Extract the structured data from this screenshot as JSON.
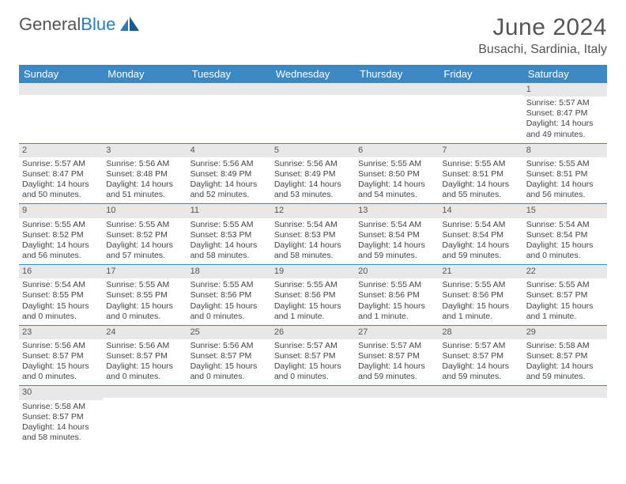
{
  "brand": {
    "part1": "General",
    "part2": "Blue"
  },
  "title": "June 2024",
  "location": "Busachi, Sardinia, Italy",
  "colors": {
    "header_bg": "#3b88c4",
    "header_text": "#ffffff",
    "daynum_bg": "#e8e8e8",
    "text": "#555555",
    "row_divider": "#3b88c4"
  },
  "days_of_week": [
    "Sunday",
    "Monday",
    "Tuesday",
    "Wednesday",
    "Thursday",
    "Friday",
    "Saturday"
  ],
  "first_weekday_index": 6,
  "days": [
    {
      "n": 1,
      "sunrise": "5:57 AM",
      "sunset": "8:47 PM",
      "daylight": "14 hours and 49 minutes."
    },
    {
      "n": 2,
      "sunrise": "5:57 AM",
      "sunset": "8:47 PM",
      "daylight": "14 hours and 50 minutes."
    },
    {
      "n": 3,
      "sunrise": "5:56 AM",
      "sunset": "8:48 PM",
      "daylight": "14 hours and 51 minutes."
    },
    {
      "n": 4,
      "sunrise": "5:56 AM",
      "sunset": "8:49 PM",
      "daylight": "14 hours and 52 minutes."
    },
    {
      "n": 5,
      "sunrise": "5:56 AM",
      "sunset": "8:49 PM",
      "daylight": "14 hours and 53 minutes."
    },
    {
      "n": 6,
      "sunrise": "5:55 AM",
      "sunset": "8:50 PM",
      "daylight": "14 hours and 54 minutes."
    },
    {
      "n": 7,
      "sunrise": "5:55 AM",
      "sunset": "8:51 PM",
      "daylight": "14 hours and 55 minutes."
    },
    {
      "n": 8,
      "sunrise": "5:55 AM",
      "sunset": "8:51 PM",
      "daylight": "14 hours and 56 minutes."
    },
    {
      "n": 9,
      "sunrise": "5:55 AM",
      "sunset": "8:52 PM",
      "daylight": "14 hours and 56 minutes."
    },
    {
      "n": 10,
      "sunrise": "5:55 AM",
      "sunset": "8:52 PM",
      "daylight": "14 hours and 57 minutes."
    },
    {
      "n": 11,
      "sunrise": "5:55 AM",
      "sunset": "8:53 PM",
      "daylight": "14 hours and 58 minutes."
    },
    {
      "n": 12,
      "sunrise": "5:54 AM",
      "sunset": "8:53 PM",
      "daylight": "14 hours and 58 minutes."
    },
    {
      "n": 13,
      "sunrise": "5:54 AM",
      "sunset": "8:54 PM",
      "daylight": "14 hours and 59 minutes."
    },
    {
      "n": 14,
      "sunrise": "5:54 AM",
      "sunset": "8:54 PM",
      "daylight": "14 hours and 59 minutes."
    },
    {
      "n": 15,
      "sunrise": "5:54 AM",
      "sunset": "8:54 PM",
      "daylight": "15 hours and 0 minutes."
    },
    {
      "n": 16,
      "sunrise": "5:54 AM",
      "sunset": "8:55 PM",
      "daylight": "15 hours and 0 minutes."
    },
    {
      "n": 17,
      "sunrise": "5:55 AM",
      "sunset": "8:55 PM",
      "daylight": "15 hours and 0 minutes."
    },
    {
      "n": 18,
      "sunrise": "5:55 AM",
      "sunset": "8:56 PM",
      "daylight": "15 hours and 0 minutes."
    },
    {
      "n": 19,
      "sunrise": "5:55 AM",
      "sunset": "8:56 PM",
      "daylight": "15 hours and 1 minute."
    },
    {
      "n": 20,
      "sunrise": "5:55 AM",
      "sunset": "8:56 PM",
      "daylight": "15 hours and 1 minute."
    },
    {
      "n": 21,
      "sunrise": "5:55 AM",
      "sunset": "8:56 PM",
      "daylight": "15 hours and 1 minute."
    },
    {
      "n": 22,
      "sunrise": "5:55 AM",
      "sunset": "8:57 PM",
      "daylight": "15 hours and 1 minute."
    },
    {
      "n": 23,
      "sunrise": "5:56 AM",
      "sunset": "8:57 PM",
      "daylight": "15 hours and 0 minutes."
    },
    {
      "n": 24,
      "sunrise": "5:56 AM",
      "sunset": "8:57 PM",
      "daylight": "15 hours and 0 minutes."
    },
    {
      "n": 25,
      "sunrise": "5:56 AM",
      "sunset": "8:57 PM",
      "daylight": "15 hours and 0 minutes."
    },
    {
      "n": 26,
      "sunrise": "5:57 AM",
      "sunset": "8:57 PM",
      "daylight": "15 hours and 0 minutes."
    },
    {
      "n": 27,
      "sunrise": "5:57 AM",
      "sunset": "8:57 PM",
      "daylight": "14 hours and 59 minutes."
    },
    {
      "n": 28,
      "sunrise": "5:57 AM",
      "sunset": "8:57 PM",
      "daylight": "14 hours and 59 minutes."
    },
    {
      "n": 29,
      "sunrise": "5:58 AM",
      "sunset": "8:57 PM",
      "daylight": "14 hours and 59 minutes."
    },
    {
      "n": 30,
      "sunrise": "5:58 AM",
      "sunset": "8:57 PM",
      "daylight": "14 hours and 58 minutes."
    }
  ],
  "labels": {
    "sunrise": "Sunrise:",
    "sunset": "Sunset:",
    "daylight": "Daylight:"
  }
}
